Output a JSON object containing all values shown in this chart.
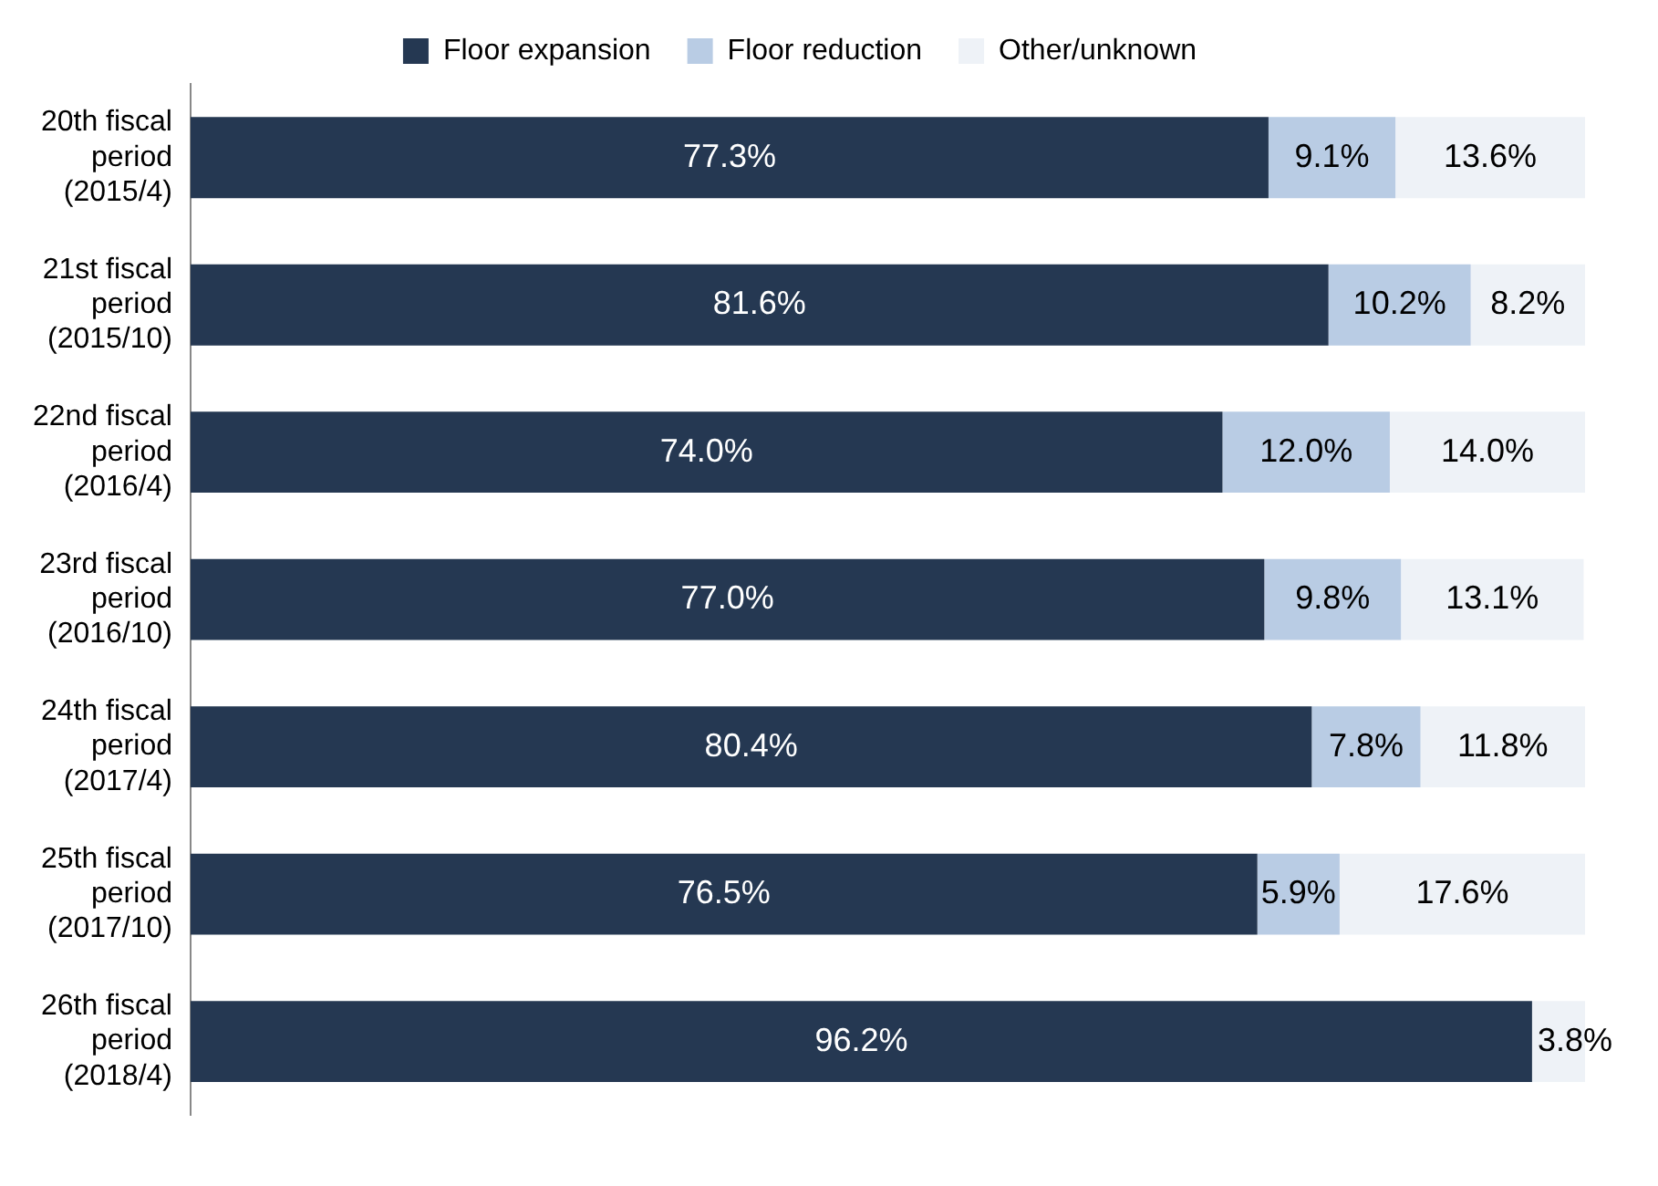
{
  "chart_data": {
    "type": "bar",
    "orientation": "horizontal",
    "stacked": true,
    "categories": [
      "20th fiscal period (2015/4)",
      "21st fiscal period (2015/10)",
      "22nd fiscal period (2016/4)",
      "23rd fiscal period (2016/10)",
      "24th fiscal period (2017/4)",
      "25th fiscal period (2017/10)",
      "26th fiscal period (2018/4)"
    ],
    "series": [
      {
        "name": "Floor expansion",
        "color": "#253852",
        "values": [
          77.3,
          81.6,
          74.0,
          77.0,
          80.4,
          76.5,
          96.2
        ],
        "value_labels": [
          "77.3%",
          "81.6%",
          "74.0%",
          "77.0%",
          "80.4%",
          "76.5%",
          "96.2%"
        ]
      },
      {
        "name": "Floor reduction",
        "color": "#b9cce4",
        "values": [
          9.1,
          10.2,
          12.0,
          9.8,
          7.8,
          5.9,
          0
        ],
        "value_labels": [
          "9.1%",
          "10.2%",
          "12.0%",
          "9.8%",
          "7.8%",
          "5.9%",
          null
        ]
      },
      {
        "name": "Other/unknown",
        "color": "#eef2f7",
        "values": [
          13.6,
          8.2,
          14.0,
          13.1,
          11.8,
          17.6,
          3.8
        ],
        "value_labels": [
          "13.6%",
          "8.2%",
          "14.0%",
          "13.1%",
          "11.8%",
          "17.6%",
          "3.8%"
        ]
      }
    ],
    "xlim": [
      0,
      100
    ],
    "tick_labels": "y",
    "legend": "top"
  }
}
